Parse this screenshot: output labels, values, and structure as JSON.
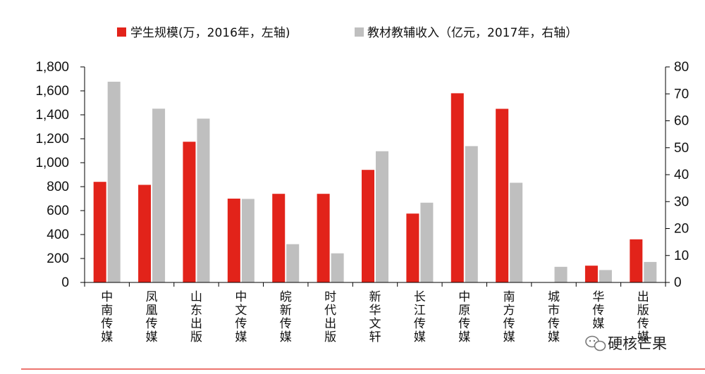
{
  "chart_data": {
    "type": "bar",
    "title": "",
    "xlabel": "",
    "ylabel": "",
    "legend_position": "top",
    "grid": false,
    "categories": [
      "中南传媒",
      "凤凰传媒",
      "山东出版",
      "中文传媒",
      "皖新传媒",
      "时代出版",
      "新华文轩",
      "长江传媒",
      "中原传媒",
      "南方传媒",
      "城市传媒",
      "华传媒",
      "出版传媒"
    ],
    "series": [
      {
        "name": "学生规模(万，2016年，左轴)",
        "axis": "left",
        "color": "#e2231a",
        "values": [
          840,
          815,
          1175,
          700,
          740,
          740,
          940,
          575,
          1580,
          1450,
          null,
          140,
          360
        ]
      },
      {
        "name": "教材教辅收入（亿元，2017年，右轴）",
        "axis": "right",
        "color": "#bfbfbf",
        "values": [
          74.5,
          64.5,
          60.8,
          31,
          14.2,
          10.8,
          48.7,
          29.6,
          50.6,
          37,
          5.8,
          4.6,
          7.6
        ]
      }
    ],
    "y_left": {
      "min": 0,
      "max": 1800,
      "step": 200,
      "ticks": [
        "0",
        "200",
        "400",
        "600",
        "800",
        "1,000",
        "1,200",
        "1,400",
        "1,600",
        "1,800"
      ]
    },
    "y_right": {
      "min": 0,
      "max": 80,
      "step": 10,
      "ticks": [
        "0",
        "10",
        "20",
        "30",
        "40",
        "50",
        "60",
        "70",
        "80"
      ]
    }
  },
  "watermark": {
    "text": "硬核芒果"
  }
}
